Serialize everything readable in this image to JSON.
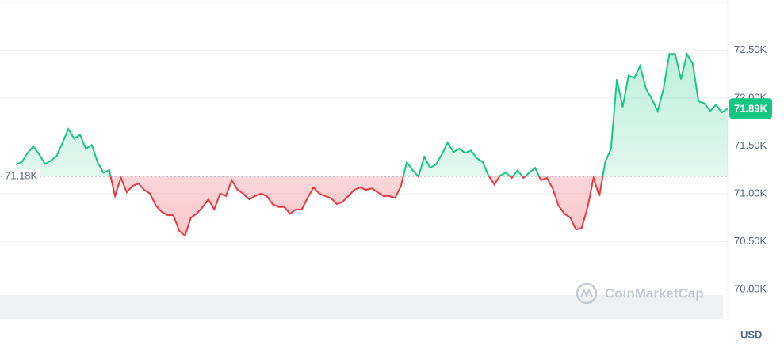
{
  "chart_data": {
    "type": "line",
    "baseline": {
      "value": 71180,
      "label": "71.18K"
    },
    "last_price": {
      "value": 71890,
      "label": "71.89K"
    },
    "up_color": "#16c784",
    "down_color": "#ea3943",
    "values": [
      71305,
      71330,
      71425,
      71495,
      71410,
      71310,
      71345,
      71395,
      71535,
      71675,
      71575,
      71615,
      71470,
      71510,
      71330,
      71220,
      71245,
      70975,
      71165,
      71015,
      71080,
      71105,
      71040,
      71000,
      70875,
      70810,
      70775,
      70775,
      70610,
      70560,
      70750,
      70790,
      70860,
      70940,
      70835,
      71000,
      70975,
      71140,
      71040,
      71000,
      70940,
      70975,
      71000,
      70975,
      70890,
      70860,
      70860,
      70790,
      70835,
      70835,
      70955,
      71065,
      71000,
      70975,
      70955,
      70890,
      70915,
      70975,
      71040,
      71065,
      71040,
      71055,
      71015,
      70975,
      70975,
      70955,
      71080,
      71330,
      71245,
      71180,
      71385,
      71270,
      71305,
      71410,
      71535,
      71435,
      71470,
      71425,
      71450,
      71370,
      71330,
      71190,
      71095,
      71190,
      71220,
      71165,
      71245,
      71165,
      71220,
      71270,
      71140,
      71165,
      71055,
      70875,
      70790,
      70750,
      70625,
      70645,
      70860,
      71165,
      70975,
      71330,
      71470,
      72195,
      71905,
      72235,
      72210,
      72335,
      72095,
      71990,
      71865,
      72095,
      72460,
      72460,
      72195,
      72460,
      72360,
      71965,
      71945,
      71865,
      71930,
      71850,
      71890
    ],
    "ylim": [
      69800,
      73000
    ],
    "yticks": [
      {
        "value": 70000,
        "label": "70.00K"
      },
      {
        "value": 70500,
        "label": "70.50K"
      },
      {
        "value": 71000,
        "label": "71.00K"
      },
      {
        "value": 71500,
        "label": "71.50K"
      },
      {
        "value": 72000,
        "label": "72.00K"
      },
      {
        "value": 72500,
        "label": "72.50K"
      }
    ],
    "grid": true,
    "currency": "USD",
    "watermark": "CoinMarketCap"
  }
}
